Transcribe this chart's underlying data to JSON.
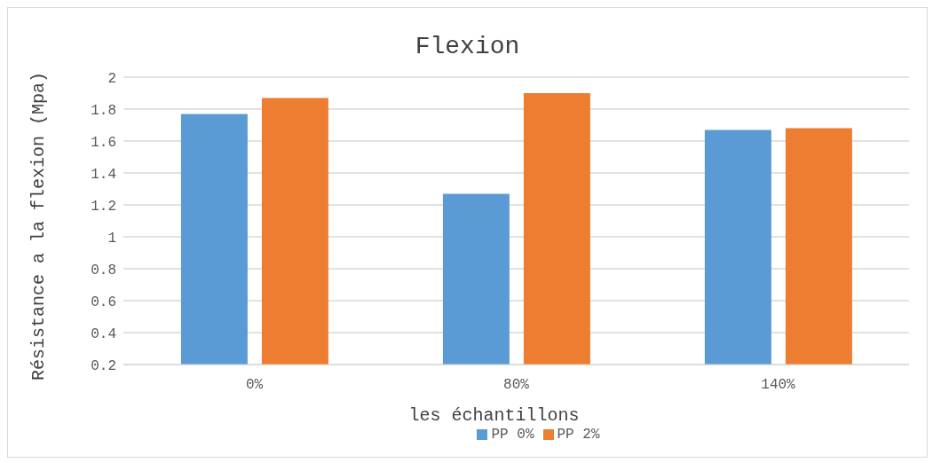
{
  "chart_data": {
    "type": "bar",
    "title": "Flexion",
    "xlabel": "les échantillons",
    "ylabel": "Résistance a la flexion (Mpa)",
    "categories": [
      "0%",
      "80%",
      "140%"
    ],
    "series": [
      {
        "name": "PP 0%",
        "color": "#5b9bd5",
        "values": [
          1.77,
          1.27,
          1.67
        ]
      },
      {
        "name": "PP 2%",
        "color": "#ed7d31",
        "values": [
          1.87,
          1.9,
          1.68
        ]
      }
    ],
    "ylim": [
      0.2,
      2
    ],
    "yticks": [
      0.2,
      0.4,
      0.6,
      0.8,
      1,
      1.2,
      1.4,
      1.6,
      1.8,
      2
    ],
    "grid": "y",
    "legend": "bottom"
  }
}
